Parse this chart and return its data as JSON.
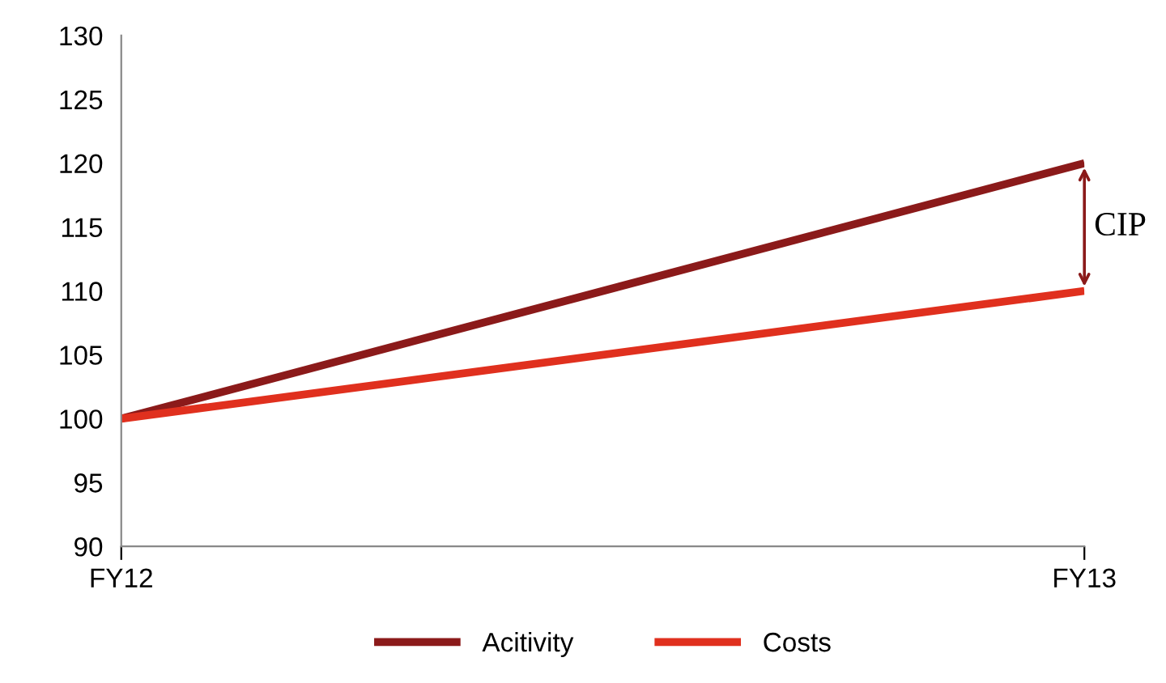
{
  "chart_data": {
    "type": "line",
    "categories": [
      "FY12",
      "FY13"
    ],
    "series": [
      {
        "name": "Acitivity",
        "color": "#8b1a1a",
        "values": [
          100,
          120
        ]
      },
      {
        "name": "Costs",
        "color": "#e0301e",
        "values": [
          100,
          110
        ]
      }
    ],
    "ylim": [
      90,
      130
    ],
    "yticks": [
      90,
      95,
      100,
      105,
      110,
      115,
      120,
      125,
      130
    ],
    "annotations": [
      "CIP"
    ],
    "grid": false,
    "legend": "bottom",
    "marker": "none",
    "line_style": "solid"
  }
}
